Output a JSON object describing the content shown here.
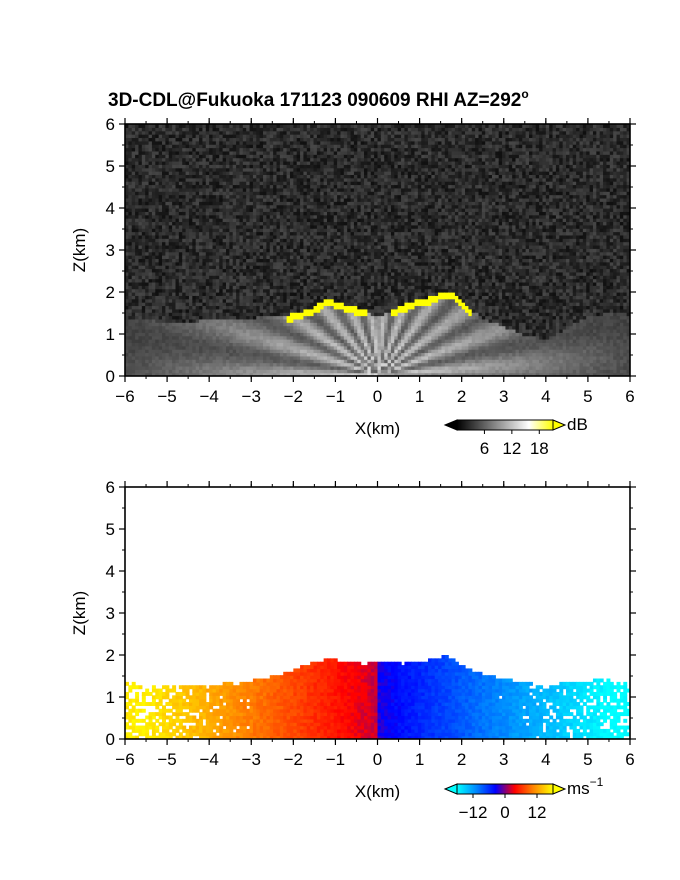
{
  "title": "3D-CDL@Fukuoka 171123 090609 RHI AZ=292",
  "title_superscript": "o",
  "chart_data": [
    {
      "type": "heatmap",
      "name": "backscatter-intensity",
      "xlabel": "X(km)",
      "ylabel": "Z(km)",
      "xlim": [
        -6,
        6
      ],
      "ylim": [
        0,
        6
      ],
      "xticks": [
        "-6",
        "-5",
        "-4",
        "-3",
        "-2",
        "-1",
        "0",
        "1",
        "2",
        "3",
        "4",
        "5",
        "6"
      ],
      "yticks": [
        "0",
        "1",
        "2",
        "3",
        "4",
        "5",
        "6"
      ],
      "colorbar": {
        "unit": "dB",
        "tick_labels": [
          "6",
          "12",
          "18"
        ],
        "range": [
          0,
          21
        ],
        "colors": [
          "#000000",
          "#555555",
          "#aaaaaa",
          "#ffffff",
          "#ffff00"
        ]
      },
      "signal_top_km": {
        "x": [
          -6,
          -5.5,
          -5,
          -4.5,
          -4,
          -3.5,
          -3,
          -2.5,
          -2,
          -1.5,
          -1.2,
          -1,
          -0.7,
          -0.3,
          0,
          0.3,
          0.6,
          1,
          1.3,
          1.6,
          1.9,
          2.1,
          2.5,
          3,
          3.5,
          4,
          4.5,
          5,
          5.5,
          6
        ],
        "z": [
          1.3,
          1.25,
          1.2,
          1.2,
          1.25,
          1.3,
          1.3,
          1.35,
          1.4,
          1.55,
          1.8,
          1.7,
          1.6,
          1.5,
          1.3,
          1.45,
          1.6,
          1.75,
          1.8,
          1.95,
          1.85,
          1.6,
          1.3,
          1.1,
          0.9,
          0.8,
          1.05,
          1.35,
          1.4,
          1.35
        ]
      }
    },
    {
      "type": "heatmap",
      "name": "doppler-velocity",
      "xlabel": "X(km)",
      "ylabel": "Z(km)",
      "xlim": [
        -6,
        6
      ],
      "ylim": [
        0,
        6
      ],
      "xticks": [
        "-6",
        "-5",
        "-4",
        "-3",
        "-2",
        "-1",
        "0",
        "1",
        "2",
        "3",
        "4",
        "5",
        "6"
      ],
      "yticks": [
        "0",
        "1",
        "2",
        "3",
        "4",
        "5",
        "6"
      ],
      "colorbar": {
        "unit": "ms",
        "unit_superscript": "-1",
        "tick_labels": [
          "-12",
          "0",
          "12"
        ],
        "range": [
          -18,
          18
        ],
        "colors": [
          "#00ffff",
          "#0088ff",
          "#0000ff",
          "#ff0000",
          "#ff8800",
          "#ffff00"
        ]
      },
      "signal_top_km": {
        "x": [
          -6,
          -5.5,
          -5,
          -4.5,
          -4,
          -3.5,
          -3,
          -2.5,
          -2,
          -1.5,
          -1.2,
          -1,
          -0.7,
          -0.3,
          0,
          0.3,
          0.6,
          1,
          1.3,
          1.6,
          1.9,
          2.1,
          2.5,
          3,
          3.5,
          4,
          4.5,
          5,
          5.5,
          6
        ],
        "z": [
          1.3,
          1.25,
          1.2,
          1.2,
          1.25,
          1.3,
          1.35,
          1.45,
          1.6,
          1.8,
          1.85,
          1.85,
          1.8,
          1.75,
          1.8,
          1.8,
          1.75,
          1.8,
          1.85,
          1.95,
          1.8,
          1.65,
          1.5,
          1.4,
          1.3,
          1.25,
          1.3,
          1.35,
          1.4,
          1.35
        ]
      }
    }
  ]
}
